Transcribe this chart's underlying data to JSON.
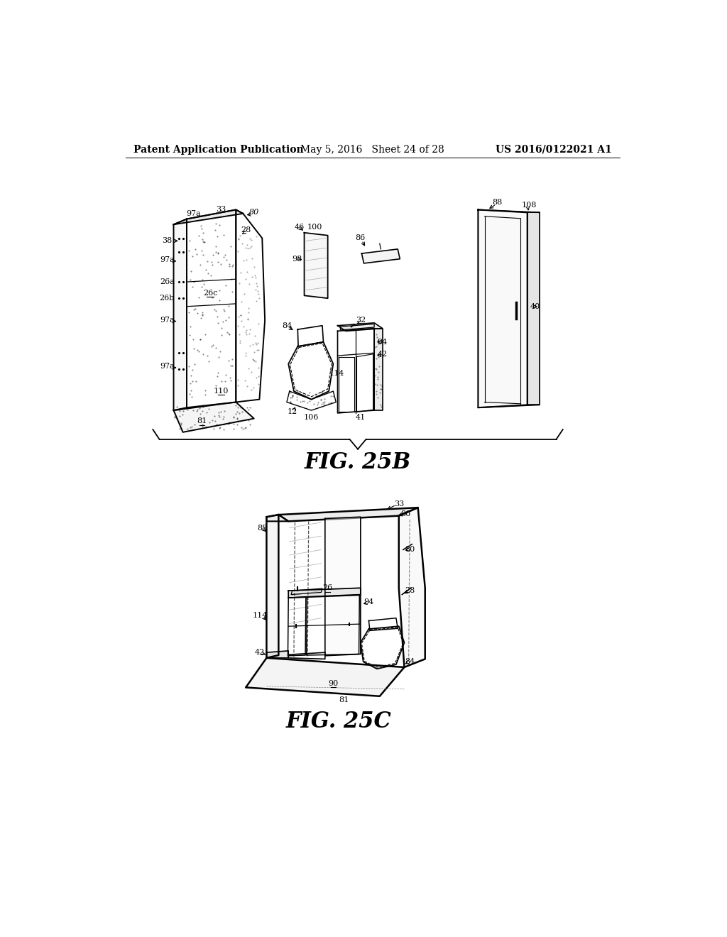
{
  "background_color": "#ffffff",
  "header_left": "Patent Application Publication",
  "header_center": "May 5, 2016   Sheet 24 of 28",
  "header_right": "US 2016/0122021 A1",
  "fig25b_label": "FIG. 25B",
  "fig25c_label": "FIG. 25C",
  "line_color": "#000000",
  "text_color": "#000000"
}
